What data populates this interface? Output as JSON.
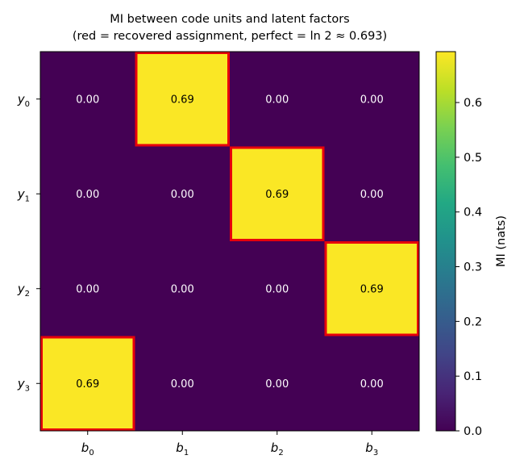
{
  "chart_data": {
    "type": "heatmap",
    "title": "MI between code units and latent factors",
    "subtitle": "(red = recovered assignment, perfect = ln 2 ≈ 0.693)",
    "x_categories": [
      {
        "base": "b",
        "sub": "0"
      },
      {
        "base": "b",
        "sub": "1"
      },
      {
        "base": "b",
        "sub": "2"
      },
      {
        "base": "b",
        "sub": "3"
      }
    ],
    "y_categories": [
      {
        "base": "y",
        "sub": "0"
      },
      {
        "base": "y",
        "sub": "1"
      },
      {
        "base": "y",
        "sub": "2"
      },
      {
        "base": "y",
        "sub": "3"
      }
    ],
    "values": [
      [
        0.0,
        0.69,
        0.0,
        0.0
      ],
      [
        0.0,
        0.0,
        0.69,
        0.0
      ],
      [
        0.0,
        0.0,
        0.0,
        0.69
      ],
      [
        0.69,
        0.0,
        0.0,
        0.0
      ]
    ],
    "cell_labels": [
      [
        "0.00",
        "0.69",
        "0.00",
        "0.00"
      ],
      [
        "0.00",
        "0.00",
        "0.69",
        "0.00"
      ],
      [
        "0.00",
        "0.00",
        "0.00",
        "0.69"
      ],
      [
        "0.69",
        "0.00",
        "0.00",
        "0.00"
      ]
    ],
    "highlighted_cells": [
      [
        0,
        1
      ],
      [
        1,
        2
      ],
      [
        2,
        3
      ],
      [
        3,
        0
      ]
    ],
    "highlight_color": "#e8000b",
    "colormap": "viridis",
    "colorbar": {
      "label": "MI (nats)",
      "range": [
        0.0,
        0.693
      ],
      "ticks": [
        "0.0",
        "0.1",
        "0.2",
        "0.3",
        "0.4",
        "0.5",
        "0.6"
      ]
    }
  }
}
